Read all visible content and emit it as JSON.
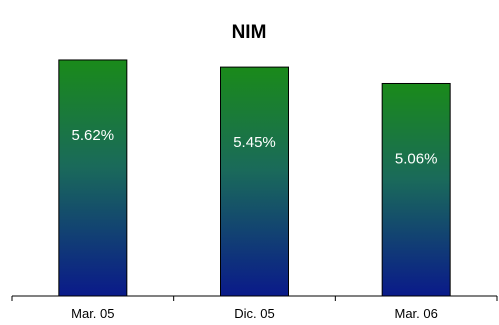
{
  "chart_data": {
    "type": "bar",
    "title": "NIM",
    "categories": [
      "Mar. 05",
      "Dic. 05",
      "Mar. 06"
    ],
    "values": [
      5.62,
      5.45,
      5.06
    ],
    "value_labels": [
      "5.62%",
      "5.45%",
      "5.06%"
    ],
    "xlabel": "",
    "ylabel": "",
    "ylim": [
      0,
      6
    ],
    "grid": false,
    "legend": "none",
    "colors": {
      "bar_top": "#1a8a1a",
      "bar_mid": "#1a6a5a",
      "bar_bottom": "#0a1a8a",
      "bar_outline": "#000000",
      "label_text": "#ffffff"
    }
  }
}
